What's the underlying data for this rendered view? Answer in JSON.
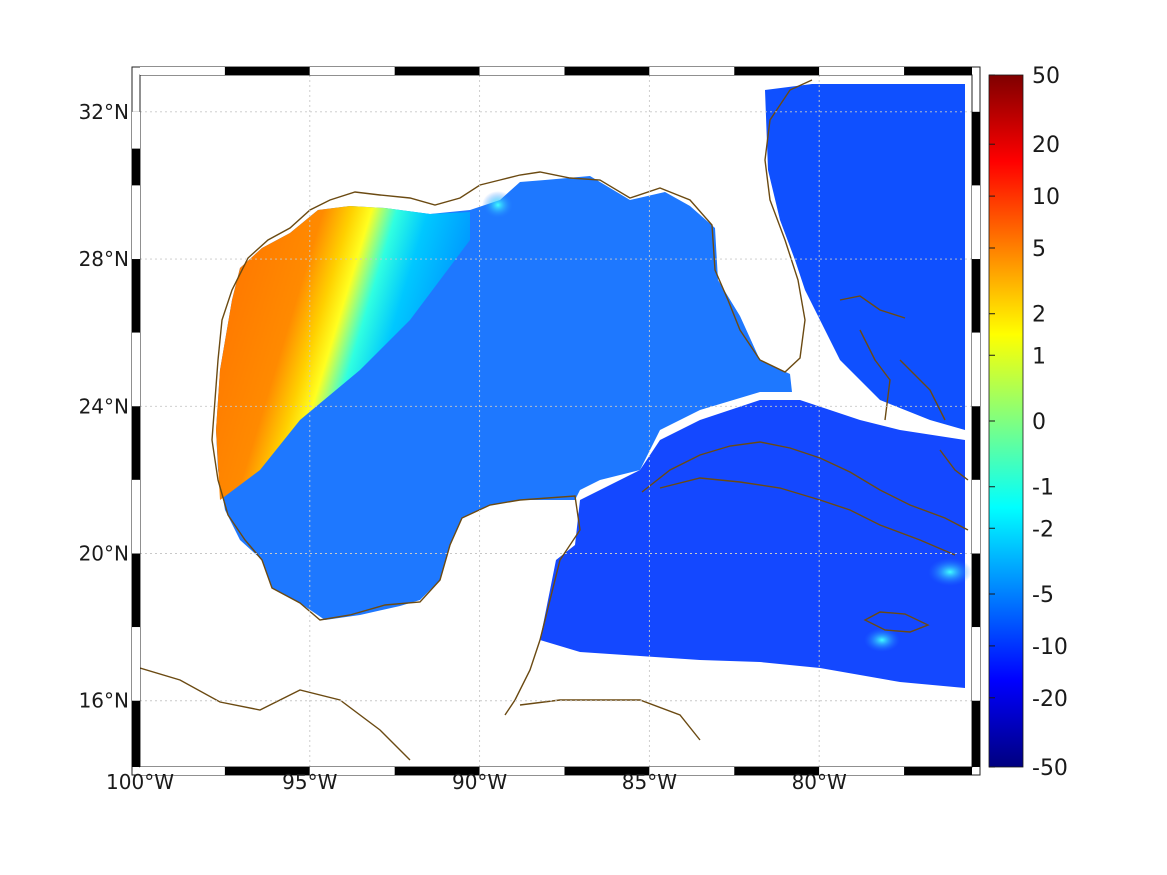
{
  "map": {
    "type": "heatmap",
    "region": "Gulf of Mexico / Caribbean",
    "lon_range": [
      -100,
      -75.5
    ],
    "lat_range": [
      14.2,
      33
    ],
    "lon_ticks": [
      {
        "value": -100,
        "label": "100°W"
      },
      {
        "value": -95,
        "label": "95°W"
      },
      {
        "value": -90,
        "label": "90°W"
      },
      {
        "value": -85,
        "label": "85°W"
      },
      {
        "value": -80,
        "label": "80°W"
      }
    ],
    "lat_ticks": [
      {
        "value": 32,
        "label": "32°N"
      },
      {
        "value": 28,
        "label": "28°N"
      },
      {
        "value": 24,
        "label": "24°N"
      },
      {
        "value": 20,
        "label": "20°N"
      },
      {
        "value": 16,
        "label": "16°N"
      }
    ],
    "grid": true,
    "coastline_color": "#6b4a12",
    "land_color": "#ffffff"
  },
  "colorbar": {
    "ticks": [
      "50",
      "20",
      "10",
      "5",
      "2",
      "1",
      "0",
      "-1",
      "-2",
      "-5",
      "-10",
      "-20",
      "-50"
    ],
    "colormap": [
      "#7f0000",
      "#ff0000",
      "#ff8000",
      "#ffff00",
      "#80ff80",
      "#00ffff",
      "#0080ff",
      "#0000ff",
      "#00007f"
    ]
  }
}
